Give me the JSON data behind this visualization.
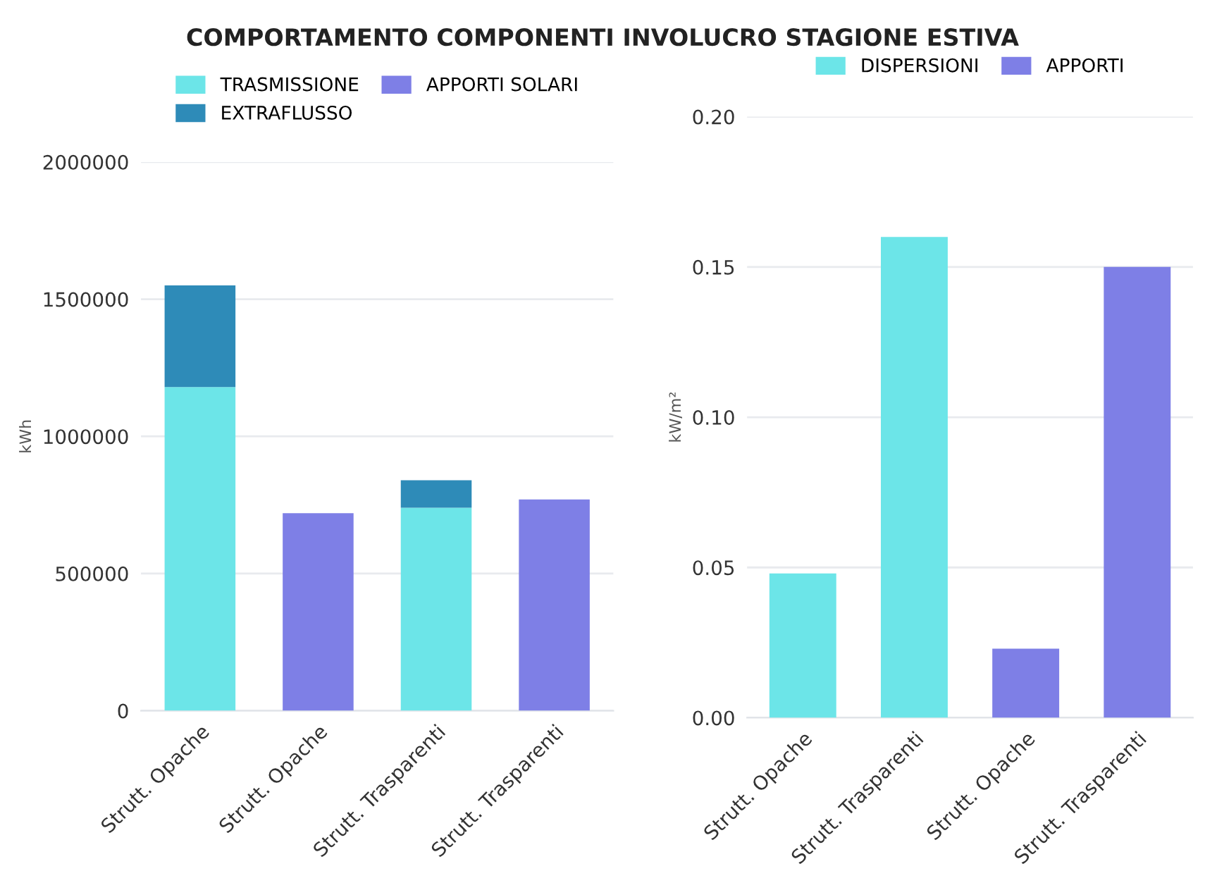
{
  "chart_data": [
    {
      "type": "bar",
      "title": "COMPORTAMENTO COMPONENTI INVOLUCRO STAGIONE ESTIVA",
      "ylabel": "kWh",
      "stacked": true,
      "categories": [
        "Strutt. Opache",
        "Strutt. Opache",
        "Strutt. Trasparenti",
        "Strutt. Trasparenti"
      ],
      "series": [
        {
          "name": "TRASMISSIONE",
          "color": "#6ce5e8",
          "values": [
            1180000,
            null,
            740000,
            null
          ]
        },
        {
          "name": "EXTRAFLUSSO",
          "color": "#2e8bb8",
          "values": [
            370000,
            null,
            100000,
            null
          ]
        },
        {
          "name": "APPORTI SOLARI",
          "color": "#7e7fe6",
          "values": [
            null,
            720000,
            null,
            770000
          ]
        }
      ],
      "ylim": [
        0,
        2000000
      ],
      "yticks": [
        0,
        500000,
        1000000,
        1500000,
        2000000
      ],
      "grid": "y",
      "legend": "top"
    },
    {
      "type": "bar",
      "ylabel": "kW/m²",
      "stacked": true,
      "categories": [
        "Strutt. Opache",
        "Strutt. Trasparenti",
        "Strutt. Opache",
        "Strutt. Trasparenti"
      ],
      "series": [
        {
          "name": "DISPERSIONI",
          "color": "#6ce5e8",
          "values": [
            0.048,
            0.16,
            null,
            null
          ]
        },
        {
          "name": "APPORTI",
          "color": "#7e7fe6",
          "values": [
            null,
            null,
            0.023,
            0.15
          ]
        }
      ],
      "ylim": [
        0,
        0.2
      ],
      "yticks": [
        {
          "value": 0,
          "label": "0.00"
        },
        0.05,
        {
          "value": 0.1,
          "label": "0.10"
        },
        0.15,
        {
          "value": 0.2,
          "label": "0.20"
        }
      ],
      "grid": "y",
      "legend": "top"
    }
  ]
}
